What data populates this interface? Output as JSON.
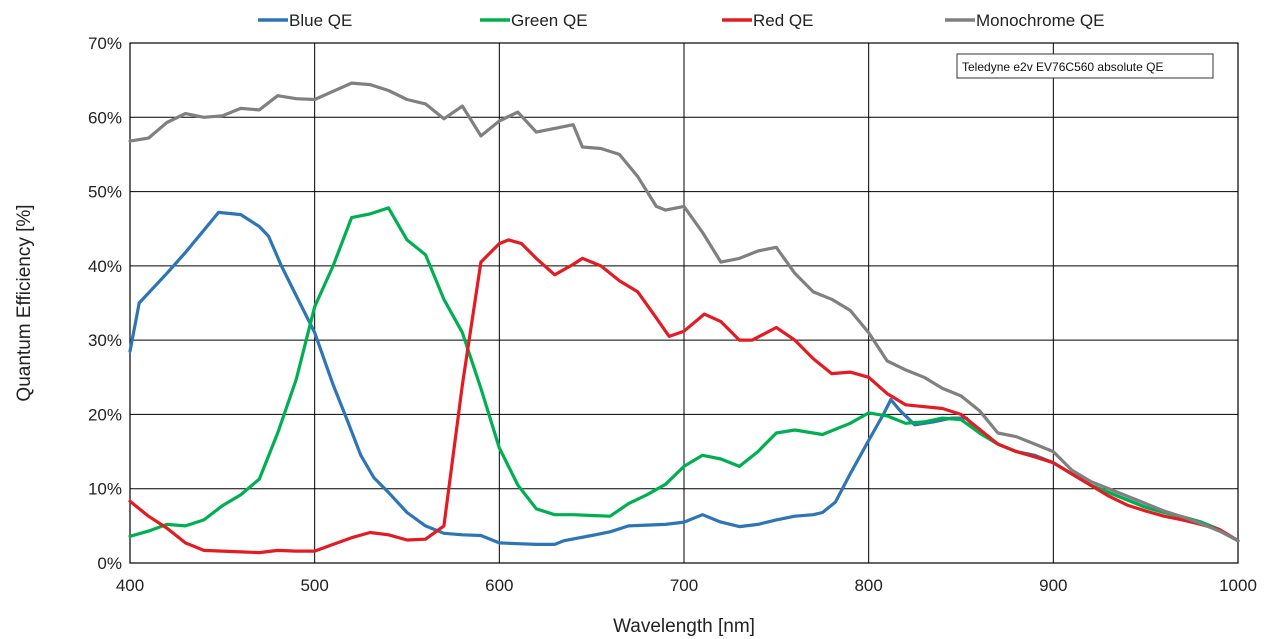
{
  "chart_data": {
    "type": "line",
    "xlabel": "Wavelength [nm]",
    "ylabel": "Quantum Efficiency [%]",
    "xlim": [
      400,
      1000
    ],
    "ylim": [
      0,
      70
    ],
    "x_ticks": [
      "400",
      "500",
      "600",
      "700",
      "800",
      "900",
      "1000"
    ],
    "y_ticks": [
      "0%",
      "10%",
      "20%",
      "30%",
      "40%",
      "50%",
      "60%",
      "70%"
    ],
    "grid": true,
    "legend_position": "top",
    "annotation": "Teledyne e2v EV76C560 absolute QE",
    "series": [
      {
        "name": "Blue QE",
        "color": "#2e75b6",
        "points": [
          [
            400,
            28.5
          ],
          [
            405,
            35
          ],
          [
            420,
            39
          ],
          [
            430,
            41.8
          ],
          [
            440,
            44.8
          ],
          [
            448,
            47.2
          ],
          [
            460,
            46.9
          ],
          [
            470,
            45.3
          ],
          [
            475,
            44
          ],
          [
            482,
            40
          ],
          [
            490,
            36
          ],
          [
            500,
            31
          ],
          [
            510,
            24
          ],
          [
            518,
            19
          ],
          [
            525,
            14.5
          ],
          [
            532,
            11.5
          ],
          [
            540,
            9.5
          ],
          [
            550,
            6.8
          ],
          [
            560,
            5
          ],
          [
            570,
            4
          ],
          [
            580,
            3.8
          ],
          [
            590,
            3.7
          ],
          [
            600,
            2.7
          ],
          [
            610,
            2.6
          ],
          [
            620,
            2.5
          ],
          [
            630,
            2.5
          ],
          [
            635,
            3
          ],
          [
            650,
            3.7
          ],
          [
            660,
            4.2
          ],
          [
            670,
            5
          ],
          [
            680,
            5.1
          ],
          [
            690,
            5.2
          ],
          [
            700,
            5.5
          ],
          [
            710,
            6.5
          ],
          [
            720,
            5.5
          ],
          [
            730,
            4.9
          ],
          [
            740,
            5.2
          ],
          [
            750,
            5.8
          ],
          [
            760,
            6.3
          ],
          [
            770,
            6.5
          ],
          [
            775,
            6.8
          ],
          [
            782,
            8.2
          ],
          [
            790,
            12
          ],
          [
            800,
            16.5
          ],
          [
            808,
            20
          ],
          [
            812,
            22
          ],
          [
            817,
            20.5
          ],
          [
            825,
            18.6
          ],
          [
            835,
            19
          ],
          [
            845,
            19.5
          ],
          [
            853,
            19.5
          ],
          [
            860,
            17.5
          ],
          [
            870,
            16
          ],
          [
            880,
            15
          ],
          [
            890,
            14.5
          ],
          [
            900,
            13.5
          ],
          [
            910,
            12
          ],
          [
            920,
            10.5
          ],
          [
            930,
            9.5
          ],
          [
            940,
            8.5
          ],
          [
            950,
            7.5
          ],
          [
            960,
            6.8
          ],
          [
            970,
            6.2
          ],
          [
            980,
            5.5
          ],
          [
            990,
            4.5
          ],
          [
            1000,
            3
          ]
        ]
      },
      {
        "name": "Green QE",
        "color": "#00b050",
        "points": [
          [
            400,
            3.6
          ],
          [
            410,
            4.3
          ],
          [
            420,
            5.2
          ],
          [
            430,
            5
          ],
          [
            440,
            5.8
          ],
          [
            450,
            7.7
          ],
          [
            460,
            9.2
          ],
          [
            470,
            11.3
          ],
          [
            480,
            17.5
          ],
          [
            490,
            24.7
          ],
          [
            500,
            34.5
          ],
          [
            510,
            40
          ],
          [
            520,
            46.5
          ],
          [
            530,
            47
          ],
          [
            540,
            47.8
          ],
          [
            550,
            43.5
          ],
          [
            560,
            41.5
          ],
          [
            570,
            35.5
          ],
          [
            580,
            31
          ],
          [
            590,
            23.5
          ],
          [
            600,
            15.5
          ],
          [
            610,
            10.5
          ],
          [
            620,
            7.3
          ],
          [
            630,
            6.5
          ],
          [
            640,
            6.5
          ],
          [
            650,
            6.4
          ],
          [
            660,
            6.3
          ],
          [
            670,
            8
          ],
          [
            680,
            9.2
          ],
          [
            690,
            10.6
          ],
          [
            700,
            13
          ],
          [
            710,
            14.5
          ],
          [
            720,
            14
          ],
          [
            730,
            13
          ],
          [
            740,
            15
          ],
          [
            750,
            17.5
          ],
          [
            760,
            17.9
          ],
          [
            775,
            17.3
          ],
          [
            790,
            18.8
          ],
          [
            800,
            20.2
          ],
          [
            810,
            19.8
          ],
          [
            820,
            18.8
          ],
          [
            830,
            19
          ],
          [
            840,
            19.5
          ],
          [
            850,
            19.3
          ],
          [
            860,
            17.5
          ],
          [
            870,
            16
          ],
          [
            880,
            15
          ],
          [
            890,
            14.3
          ],
          [
            900,
            13.5
          ],
          [
            910,
            12
          ],
          [
            920,
            10.5
          ],
          [
            930,
            9.5
          ],
          [
            940,
            8.5
          ],
          [
            950,
            7.5
          ],
          [
            960,
            6.8
          ],
          [
            970,
            6.2
          ],
          [
            980,
            5.5
          ],
          [
            990,
            4.5
          ],
          [
            1000,
            3
          ]
        ]
      },
      {
        "name": "Red QE",
        "color": "#e31c23",
        "points": [
          [
            400,
            8.3
          ],
          [
            410,
            6.3
          ],
          [
            420,
            4.7
          ],
          [
            430,
            2.7
          ],
          [
            440,
            1.7
          ],
          [
            450,
            1.6
          ],
          [
            460,
            1.5
          ],
          [
            470,
            1.4
          ],
          [
            480,
            1.7
          ],
          [
            490,
            1.6
          ],
          [
            500,
            1.6
          ],
          [
            510,
            2.5
          ],
          [
            520,
            3.4
          ],
          [
            530,
            4.1
          ],
          [
            540,
            3.8
          ],
          [
            550,
            3.1
          ],
          [
            560,
            3.2
          ],
          [
            570,
            5
          ],
          [
            580,
            24
          ],
          [
            590,
            40.5
          ],
          [
            600,
            43
          ],
          [
            605,
            43.5
          ],
          [
            612,
            43
          ],
          [
            620,
            41
          ],
          [
            630,
            38.8
          ],
          [
            640,
            40.2
          ],
          [
            645,
            41
          ],
          [
            655,
            40
          ],
          [
            665,
            38
          ],
          [
            675,
            36.5
          ],
          [
            685,
            33
          ],
          [
            692,
            30.5
          ],
          [
            700,
            31.2
          ],
          [
            711,
            33.5
          ],
          [
            720,
            32.5
          ],
          [
            730,
            30
          ],
          [
            737,
            30
          ],
          [
            750,
            31.7
          ],
          [
            760,
            30
          ],
          [
            770,
            27.5
          ],
          [
            780,
            25.5
          ],
          [
            790,
            25.7
          ],
          [
            800,
            25
          ],
          [
            810,
            22.8
          ],
          [
            820,
            21.3
          ],
          [
            840,
            20.8
          ],
          [
            850,
            20
          ],
          [
            860,
            18
          ],
          [
            870,
            16
          ],
          [
            880,
            15
          ],
          [
            890,
            14.3
          ],
          [
            900,
            13.5
          ],
          [
            910,
            12
          ],
          [
            920,
            10.5
          ],
          [
            930,
            9
          ],
          [
            940,
            7.8
          ],
          [
            950,
            7
          ],
          [
            960,
            6.3
          ],
          [
            970,
            5.8
          ],
          [
            980,
            5.2
          ],
          [
            990,
            4.5
          ],
          [
            1000,
            3
          ]
        ]
      },
      {
        "name": "Monochrome QE",
        "color": "#808080",
        "points": [
          [
            400,
            56.8
          ],
          [
            410,
            57.2
          ],
          [
            420,
            59.3
          ],
          [
            430,
            60.5
          ],
          [
            440,
            60
          ],
          [
            450,
            60.2
          ],
          [
            460,
            61.2
          ],
          [
            470,
            61
          ],
          [
            480,
            62.9
          ],
          [
            490,
            62.5
          ],
          [
            500,
            62.4
          ],
          [
            510,
            63.5
          ],
          [
            520,
            64.6
          ],
          [
            530,
            64.4
          ],
          [
            540,
            63.6
          ],
          [
            550,
            62.4
          ],
          [
            560,
            61.8
          ],
          [
            570,
            59.8
          ],
          [
            580,
            61.5
          ],
          [
            590,
            57.5
          ],
          [
            600,
            59.5
          ],
          [
            610,
            60.7
          ],
          [
            620,
            58
          ],
          [
            630,
            58.5
          ],
          [
            640,
            59
          ],
          [
            645,
            56
          ],
          [
            655,
            55.8
          ],
          [
            665,
            55
          ],
          [
            675,
            52
          ],
          [
            685,
            48
          ],
          [
            690,
            47.5
          ],
          [
            700,
            48
          ],
          [
            710,
            44.5
          ],
          [
            720,
            40.5
          ],
          [
            730,
            41
          ],
          [
            740,
            42
          ],
          [
            750,
            42.5
          ],
          [
            760,
            39
          ],
          [
            770,
            36.5
          ],
          [
            780,
            35.5
          ],
          [
            790,
            34
          ],
          [
            800,
            31
          ],
          [
            810,
            27.2
          ],
          [
            820,
            26
          ],
          [
            830,
            25
          ],
          [
            840,
            23.5
          ],
          [
            850,
            22.5
          ],
          [
            860,
            20.5
          ],
          [
            870,
            17.5
          ],
          [
            880,
            17
          ],
          [
            890,
            16
          ],
          [
            900,
            15
          ],
          [
            910,
            12.5
          ],
          [
            920,
            11
          ],
          [
            930,
            10
          ],
          [
            940,
            9
          ],
          [
            950,
            8
          ],
          [
            960,
            7
          ],
          [
            970,
            6.2
          ],
          [
            980,
            5.3
          ],
          [
            990,
            4.3
          ],
          [
            1000,
            3
          ]
        ]
      }
    ]
  }
}
